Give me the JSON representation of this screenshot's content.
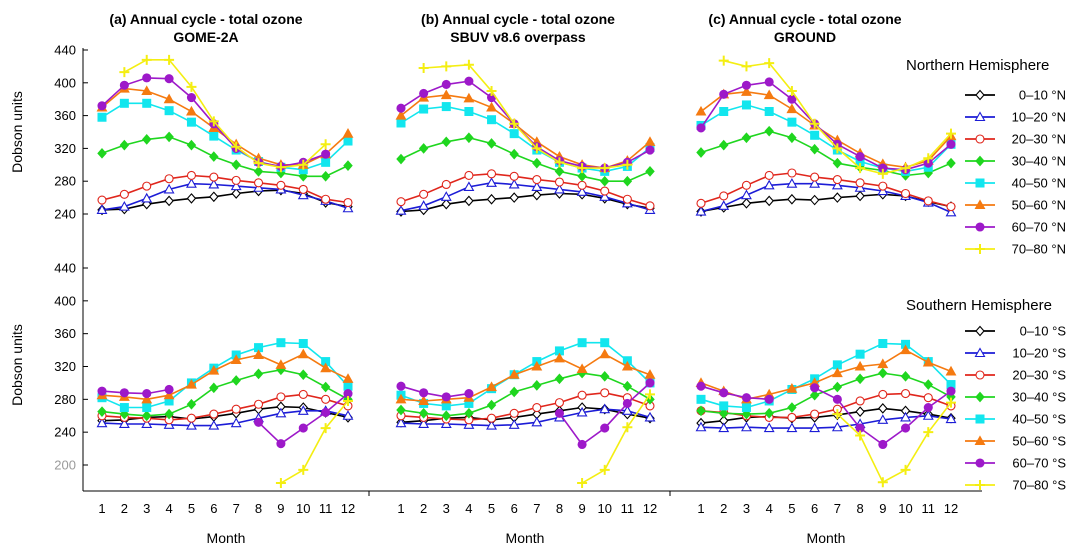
{
  "panel_titles": [
    [
      "(a) Annual cycle - total ozone",
      "GOME-2A"
    ],
    [
      "(b) Annual cycle - total ozone",
      "SBUV v8.6 overpass"
    ],
    [
      "(c) Annual cycle - total ozone",
      "GROUND"
    ]
  ],
  "ylabel": "Dobson units",
  "xlabel": "Month",
  "hemisphere_labels": [
    "Northern Hemisphere",
    "Southern Hemisphere"
  ],
  "colors": {
    "0-10": "#000000",
    "10-20": "#1c1cd6",
    "20-30": "#e0261c",
    "30-40": "#1fd61f",
    "40-50": "#12e6ee",
    "50-60": "#f57a10",
    "60-70": "#9d19c9",
    "70-80": "#f4ee12"
  },
  "markers": {
    "0-10": "diamond-open",
    "10-20": "triangle-open",
    "20-30": "circle-open",
    "30-40": "diamond-filled",
    "40-50": "square-filled",
    "50-60": "triangle-filled",
    "60-70": "circle-filled",
    "70-80": "plus"
  },
  "chart_data": [
    {
      "type": "line",
      "title": "(a) Annual cycle - total ozone GOME-2A",
      "hemisphere": "Northern Hemisphere",
      "xlabel": "Month",
      "ylabel": "Dobson units",
      "ylim": [
        240,
        440
      ],
      "yticks": [
        240,
        280,
        320,
        360,
        400,
        440
      ],
      "x": [
        1,
        2,
        3,
        4,
        5,
        6,
        7,
        8,
        9,
        10,
        11,
        12
      ],
      "series": [
        {
          "name": "0–10 °N",
          "key": "0-10",
          "values": [
            245,
            246,
            252,
            256,
            259,
            261,
            265,
            268,
            269,
            265,
            254,
            249
          ]
        },
        {
          "name": "10–20 °N",
          "key": "10-20",
          "values": [
            245,
            249,
            259,
            270,
            277,
            276,
            274,
            272,
            270,
            263,
            256,
            247
          ]
        },
        {
          "name": "20–30 °N",
          "key": "20–30",
          "values": [
            257,
            264,
            274,
            283,
            287,
            285,
            281,
            278,
            275,
            270,
            258,
            254
          ]
        },
        {
          "name": "30–40 °N",
          "key": "30-40",
          "values": [
            314,
            324,
            331,
            334,
            324,
            310,
            300,
            292,
            290,
            286,
            286,
            299
          ]
        },
        {
          "name": "40–50 °N",
          "key": "40-50",
          "values": [
            358,
            375,
            375,
            366,
            352,
            335,
            318,
            304,
            297,
            294,
            303,
            329
          ]
        },
        {
          "name": "50–60 °N",
          "key": "50-60",
          "values": [
            370,
            393,
            390,
            380,
            365,
            345,
            325,
            308,
            300,
            300,
            313,
            338
          ]
        },
        {
          "name": "60–70 °N",
          "key": "60-70",
          "values": [
            372,
            397,
            406,
            405,
            382,
            350,
            320,
            303,
            298,
            303,
            313,
            null
          ]
        },
        {
          "name": "70–80 °N",
          "key": "70-80",
          "values": [
            null,
            413,
            428,
            428,
            395,
            353,
            322,
            302,
            297,
            300,
            325,
            null
          ]
        }
      ]
    },
    {
      "type": "line",
      "title": "(b) Annual cycle - total ozone SBUV v8.6 overpass",
      "hemisphere": "Northern Hemisphere",
      "xlabel": "Month",
      "ylabel": "Dobson units",
      "ylim": [
        240,
        440
      ],
      "yticks": [
        240,
        280,
        320,
        360,
        400,
        440
      ],
      "x": [
        1,
        2,
        3,
        4,
        5,
        6,
        7,
        8,
        9,
        10,
        11,
        12
      ],
      "series": [
        {
          "name": "0–10 °N",
          "key": "0-10",
          "values": [
            243,
            245,
            252,
            256,
            258,
            260,
            263,
            265,
            264,
            259,
            252,
            247
          ]
        },
        {
          "name": "10–20 °N",
          "key": "10-20",
          "values": [
            244,
            250,
            261,
            273,
            278,
            276,
            273,
            270,
            267,
            261,
            253,
            245
          ]
        },
        {
          "name": "20–30 °N",
          "key": "20-30",
          "values": [
            255,
            264,
            276,
            287,
            289,
            286,
            282,
            279,
            275,
            268,
            258,
            250
          ]
        },
        {
          "name": "30–40 °N",
          "key": "30-40",
          "values": [
            307,
            320,
            328,
            333,
            326,
            313,
            302,
            292,
            286,
            280,
            280,
            292
          ]
        },
        {
          "name": "40–50 °N",
          "key": "40-50",
          "values": [
            351,
            368,
            371,
            365,
            355,
            338,
            318,
            303,
            296,
            292,
            298,
            321
          ]
        },
        {
          "name": "50–60 °N",
          "key": "50-60",
          "values": [
            360,
            382,
            385,
            381,
            370,
            350,
            328,
            310,
            300,
            296,
            305,
            328
          ]
        },
        {
          "name": "60–70 °N",
          "key": "60-70",
          "values": [
            369,
            387,
            398,
            402,
            382,
            350,
            322,
            305,
            298,
            296,
            303,
            318
          ]
        },
        {
          "name": "70–80 °N",
          "key": "70-80",
          "values": [
            null,
            418,
            420,
            422,
            390,
            350,
            320,
            303,
            296,
            296,
            300,
            null
          ]
        }
      ]
    },
    {
      "type": "line",
      "title": "(c) Annual cycle - total ozone GROUND",
      "hemisphere": "Northern Hemisphere",
      "xlabel": "Month",
      "ylabel": "Dobson units",
      "ylim": [
        240,
        440
      ],
      "yticks": [
        240,
        280,
        320,
        360,
        400,
        440
      ],
      "x": [
        1,
        2,
        3,
        4,
        5,
        6,
        7,
        8,
        9,
        10,
        11,
        12
      ],
      "series": [
        {
          "name": "0–10 °N",
          "key": "0-10",
          "values": [
            243,
            248,
            253,
            256,
            258,
            257,
            260,
            262,
            264,
            262,
            255,
            249
          ]
        },
        {
          "name": "10–20 °N",
          "key": "10-20",
          "values": [
            243,
            250,
            263,
            275,
            277,
            277,
            275,
            272,
            268,
            262,
            254,
            242
          ]
        },
        {
          "name": "20–30 °N",
          "key": "20-30",
          "values": [
            253,
            262,
            275,
            287,
            290,
            285,
            282,
            278,
            274,
            265,
            256,
            249
          ]
        },
        {
          "name": "30–40 °N",
          "key": "30-40",
          "values": [
            315,
            324,
            333,
            341,
            333,
            319,
            302,
            297,
            293,
            287,
            290,
            302
          ]
        },
        {
          "name": "40–50 °N",
          "key": "40-50",
          "values": [
            348,
            365,
            373,
            365,
            352,
            336,
            318,
            304,
            296,
            292,
            297,
            325
          ]
        },
        {
          "name": "50–60 °N",
          "key": "50-60",
          "values": [
            365,
            386,
            389,
            385,
            368,
            348,
            330,
            314,
            301,
            297,
            305,
            335
          ]
        },
        {
          "name": "60–70 °N",
          "key": "60-70",
          "values": [
            345,
            386,
            397,
            401,
            380,
            350,
            325,
            310,
            296,
            294,
            302,
            325
          ]
        },
        {
          "name": "70–80 °N",
          "key": "70-80",
          "values": [
            null,
            427,
            420,
            424,
            390,
            350,
            320,
            296,
            289,
            296,
            308,
            338
          ]
        }
      ]
    },
    {
      "type": "line",
      "title": "(a) Annual cycle - total ozone GOME-2A",
      "hemisphere": "Southern Hemisphere",
      "xlabel": "Month",
      "ylabel": "Dobson units",
      "ylim": [
        200,
        440
      ],
      "yticks": [
        200,
        240,
        280,
        320,
        360,
        400,
        440
      ],
      "x": [
        1,
        2,
        3,
        4,
        5,
        6,
        7,
        8,
        9,
        10,
        11,
        12
      ],
      "series": [
        {
          "name": "0–10 °S",
          "key": "0-10",
          "values": [
            254,
            255,
            258,
            259,
            256,
            259,
            263,
            268,
            271,
            270,
            264,
            258
          ]
        },
        {
          "name": "10–20 °S",
          "key": "10-20",
          "values": [
            251,
            250,
            250,
            249,
            248,
            248,
            251,
            257,
            263,
            266,
            266,
            260
          ]
        },
        {
          "name": "20–30 °S",
          "key": "20-30",
          "values": [
            260,
            258,
            257,
            255,
            257,
            262,
            268,
            274,
            283,
            286,
            280,
            272
          ]
        },
        {
          "name": "30–40 °S",
          "key": "30-40",
          "values": [
            265,
            262,
            260,
            262,
            274,
            294,
            303,
            311,
            316,
            310,
            295,
            280
          ]
        },
        {
          "name": "40–50 °S",
          "key": "40-50",
          "values": [
            282,
            270,
            270,
            278,
            300,
            318,
            334,
            343,
            349,
            348,
            326,
            296
          ]
        },
        {
          "name": "50–60 °S",
          "key": "50-60",
          "values": [
            285,
            283,
            280,
            285,
            298,
            315,
            328,
            334,
            322,
            335,
            318,
            305
          ]
        },
        {
          "name": "60–70 °S",
          "key": "60-70",
          "values": [
            290,
            288,
            287,
            292,
            null,
            null,
            null,
            252,
            226,
            245,
            264,
            287
          ]
        },
        {
          "name": "70–80 °S",
          "key": "70-80",
          "values": [
            null,
            null,
            null,
            null,
            null,
            null,
            null,
            null,
            178,
            194,
            245,
            278
          ]
        }
      ]
    },
    {
      "type": "line",
      "title": "(b) Annual cycle - total ozone SBUV v8.6 overpass",
      "hemisphere": "Southern Hemisphere",
      "xlabel": "Month",
      "ylabel": "Dobson units",
      "ylim": [
        200,
        440
      ],
      "yticks": [
        200,
        240,
        280,
        320,
        360,
        400,
        440
      ],
      "x": [
        1,
        2,
        3,
        4,
        5,
        6,
        7,
        8,
        9,
        10,
        11,
        12
      ],
      "series": [
        {
          "name": "0–10 °S",
          "key": "0-10",
          "values": [
            252,
            254,
            257,
            258,
            255,
            258,
            262,
            266,
            270,
            268,
            262,
            257
          ]
        },
        {
          "name": "10–20 °S",
          "key": "10-20",
          "values": [
            251,
            250,
            250,
            249,
            248,
            249,
            252,
            258,
            264,
            268,
            266,
            258
          ]
        },
        {
          "name": "20–30 °S",
          "key": "20-30",
          "values": [
            260,
            258,
            256,
            255,
            257,
            263,
            270,
            276,
            285,
            288,
            282,
            272
          ]
        },
        {
          "name": "30–40 °S",
          "key": "30-40",
          "values": [
            267,
            263,
            260,
            263,
            273,
            289,
            297,
            305,
            312,
            308,
            296,
            280
          ]
        },
        {
          "name": "40–50 °S",
          "key": "40-50",
          "values": [
            285,
            275,
            272,
            275,
            293,
            310,
            326,
            339,
            349,
            349,
            327,
            300
          ]
        },
        {
          "name": "50–60 °S",
          "key": "50-60",
          "values": [
            280,
            278,
            280,
            282,
            295,
            310,
            320,
            330,
            317,
            335,
            320,
            310
          ]
        },
        {
          "name": "60–70 °S",
          "key": "60-70",
          "values": [
            296,
            288,
            283,
            287,
            null,
            null,
            null,
            263,
            225,
            245,
            275,
            300
          ]
        },
        {
          "name": "70–80 °S",
          "key": "70-80",
          "values": [
            null,
            null,
            null,
            null,
            null,
            null,
            null,
            null,
            178,
            194,
            246,
            286
          ]
        }
      ]
    },
    {
      "type": "line",
      "title": "(c) Annual cycle - total ozone GROUND",
      "hemisphere": "Southern Hemisphere",
      "xlabel": "Month",
      "ylabel": "Dobson units",
      "ylim": [
        200,
        440
      ],
      "yticks": [
        200,
        240,
        280,
        320,
        360,
        400,
        440
      ],
      "x": [
        1,
        2,
        3,
        4,
        5,
        6,
        7,
        8,
        9,
        10,
        11,
        12
      ],
      "series": [
        {
          "name": "0–10 °S",
          "key": "0-10",
          "values": [
            251,
            254,
            258,
            259,
            257,
            258,
            261,
            265,
            269,
            266,
            262,
            257
          ]
        },
        {
          "name": "10–20 °S",
          "key": "10-20",
          "values": [
            246,
            245,
            246,
            245,
            245,
            245,
            246,
            250,
            255,
            258,
            260,
            256
          ]
        },
        {
          "name": "20–30 °S",
          "key": "20-30",
          "values": [
            266,
            264,
            260,
            258,
            258,
            262,
            268,
            278,
            286,
            287,
            282,
            272
          ]
        },
        {
          "name": "30–40 °S",
          "key": "30-40",
          "values": [
            266,
            263,
            262,
            263,
            270,
            285,
            295,
            305,
            312,
            308,
            298,
            283
          ]
        },
        {
          "name": "40–50 °S",
          "key": "40-50",
          "values": [
            280,
            272,
            270,
            278,
            292,
            305,
            322,
            335,
            348,
            347,
            326,
            298
          ]
        },
        {
          "name": "50–60 °S",
          "key": "50-60",
          "values": [
            300,
            290,
            280,
            286,
            293,
            300,
            312,
            320,
            323,
            340,
            325,
            314
          ]
        },
        {
          "name": "60–70 °S",
          "key": "60-70",
          "values": [
            296,
            288,
            282,
            280,
            null,
            294,
            280,
            245,
            225,
            245,
            270,
            290
          ]
        },
        {
          "name": "70–80 °S",
          "key": "70-80",
          "values": [
            null,
            null,
            null,
            null,
            null,
            null,
            262,
            236,
            179,
            194,
            240,
            276
          ]
        }
      ]
    }
  ]
}
